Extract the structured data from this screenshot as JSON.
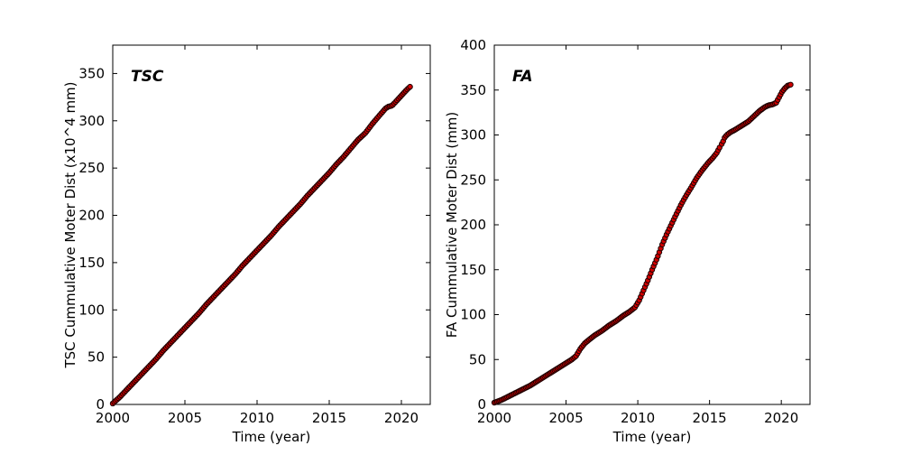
{
  "figure": {
    "background": "#ffffff",
    "spine_color": "#000000",
    "marker_fill": "#d10000",
    "marker_edge": "#1a0000"
  },
  "chart_data": [
    {
      "type": "scatter",
      "title": "TSC",
      "xlabel": "Time (year)",
      "ylabel": "TSC Cummulative Moter Dist (x10^4 mm)",
      "xlim": [
        2000,
        2022
      ],
      "ylim": [
        0,
        380
      ],
      "xticks": [
        2000,
        2005,
        2010,
        2015,
        2020
      ],
      "yticks": [
        0,
        50,
        100,
        150,
        200,
        250,
        300,
        350
      ],
      "grid": false,
      "tick_direction": "in",
      "legend": "none",
      "series": [
        {
          "name": "TSC cumulative motor distance",
          "color": "#d10000",
          "segments": [
            [
              [
                2000.0,
                1
              ],
              [
                2000.5,
                8
              ],
              [
                2001.0,
                16
              ],
              [
                2001.5,
                24
              ],
              [
                2002.0,
                32
              ],
              [
                2002.5,
                40
              ],
              [
                2003.0,
                48
              ],
              [
                2003.5,
                57
              ],
              [
                2004.0,
                65
              ],
              [
                2004.5,
                73
              ],
              [
                2005.0,
                81
              ],
              [
                2005.5,
                89
              ],
              [
                2006.0,
                97
              ],
              [
                2006.5,
                106
              ],
              [
                2007.0,
                114
              ],
              [
                2007.5,
                122
              ],
              [
                2008.0,
                130
              ],
              [
                2008.5,
                138
              ],
              [
                2009.0,
                147
              ],
              [
                2009.5,
                155
              ],
              [
                2010.0,
                163
              ],
              [
                2010.5,
                171
              ],
              [
                2011.0,
                179
              ],
              [
                2011.5,
                188
              ],
              [
                2012.0,
                196
              ],
              [
                2012.5,
                204
              ],
              [
                2013.0,
                212
              ],
              [
                2013.5,
                221
              ],
              [
                2014.0,
                229
              ],
              [
                2014.5,
                237
              ],
              [
                2015.0,
                245
              ],
              [
                2015.5,
                254
              ],
              [
                2016.0,
                262
              ],
              [
                2016.5,
                271
              ],
              [
                2017.0,
                280
              ],
              [
                2017.5,
                287
              ],
              [
                2018.0,
                297
              ],
              [
                2018.5,
                306
              ],
              [
                2018.9,
                313
              ],
              [
                2019.1,
                315
              ],
              [
                2019.35,
                316
              ],
              [
                2019.6,
                320
              ],
              [
                2019.9,
                325
              ],
              [
                2020.2,
                330
              ],
              [
                2020.45,
                334
              ],
              [
                2020.6,
                336
              ]
            ]
          ]
        }
      ]
    },
    {
      "type": "scatter",
      "title": "FA",
      "xlabel": "Time (year)",
      "ylabel": "FA Cummulative Moter Dist (mm)",
      "xlim": [
        2000,
        2022
      ],
      "ylim": [
        0,
        400
      ],
      "xticks": [
        2000,
        2005,
        2010,
        2015,
        2020
      ],
      "yticks": [
        0,
        50,
        100,
        150,
        200,
        250,
        300,
        350,
        400
      ],
      "grid": false,
      "tick_direction": "in",
      "legend": "none",
      "series": [
        {
          "name": "FA cumulative motor distance",
          "color": "#d10000",
          "segments": [
            [
              [
                2000.0,
                2
              ],
              [
                2000.5,
                5
              ],
              [
                2001.0,
                9
              ],
              [
                2001.5,
                13
              ],
              [
                2002.0,
                17
              ],
              [
                2002.5,
                21
              ],
              [
                2003.0,
                26
              ],
              [
                2003.5,
                31
              ],
              [
                2004.0,
                36
              ],
              [
                2004.5,
                41
              ],
              [
                2005.0,
                46
              ],
              [
                2005.4,
                50
              ],
              [
                2005.7,
                54
              ],
              [
                2006.0,
                62
              ],
              [
                2006.3,
                68
              ],
              [
                2006.6,
                72
              ],
              [
                2007.0,
                77
              ],
              [
                2007.5,
                82
              ],
              [
                2008.0,
                88
              ],
              [
                2008.5,
                93
              ],
              [
                2009.0,
                99
              ],
              [
                2009.4,
                103
              ],
              [
                2009.8,
                108
              ],
              [
                2010.1,
                116
              ],
              [
                2010.4,
                127
              ],
              [
                2010.7,
                138
              ],
              [
                2011.0,
                150
              ],
              [
                2011.35,
                163
              ],
              [
                2011.7,
                178
              ],
              [
                2012.0,
                189
              ],
              [
                2012.3,
                199
              ],
              [
                2012.6,
                209
              ],
              [
                2013.0,
                222
              ],
              [
                2013.35,
                232
              ],
              [
                2013.7,
                241
              ],
              [
                2014.1,
                252
              ],
              [
                2014.5,
                261
              ],
              [
                2014.9,
                269
              ],
              [
                2015.2,
                274
              ],
              [
                2015.5,
                280
              ],
              [
                2015.7,
                286
              ]
            ],
            [
              [
                2015.85,
                290
              ],
              [
                2015.95,
                293
              ]
            ],
            [
              [
                2016.05,
                297
              ],
              [
                2016.2,
                300
              ],
              [
                2016.45,
                303
              ],
              [
                2016.8,
                306
              ],
              [
                2017.2,
                310
              ],
              [
                2017.7,
                315
              ],
              [
                2018.1,
                321
              ],
              [
                2018.5,
                327
              ],
              [
                2018.85,
                331
              ],
              [
                2019.1,
                333
              ],
              [
                2019.4,
                334
              ],
              [
                2019.65,
                336
              ],
              [
                2019.85,
                342
              ],
              [
                2020.05,
                348
              ],
              [
                2020.25,
                352
              ],
              [
                2020.45,
                355
              ],
              [
                2020.65,
                356
              ]
            ]
          ]
        }
      ]
    }
  ]
}
